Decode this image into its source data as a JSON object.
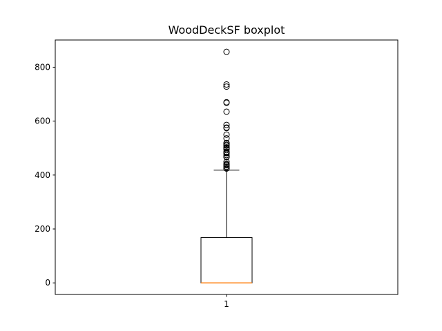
{
  "chart_data": {
    "type": "boxplot",
    "title": "WoodDeckSF boxplot",
    "xlabel": "",
    "ylabel": "",
    "categories": [
      "1"
    ],
    "ylim": [
      -42.9,
      900.9
    ],
    "yticks": [
      0,
      200,
      400,
      600,
      800
    ],
    "grid": false,
    "box": {
      "whisker_low": 0,
      "q1": 0,
      "median": 0,
      "q3": 168,
      "whisker_high": 418
    },
    "outliers": [
      857,
      736,
      728,
      670,
      668,
      635,
      586,
      576,
      574,
      550,
      536,
      519,
      517,
      512,
      509,
      503,
      501,
      499,
      495,
      486,
      483,
      481,
      474,
      468,
      466,
      449,
      441,
      439,
      436,
      431,
      426,
      424
    ],
    "colors": {
      "box": "#000000",
      "median": "#ff7f0e",
      "outlier": "#000000"
    }
  }
}
